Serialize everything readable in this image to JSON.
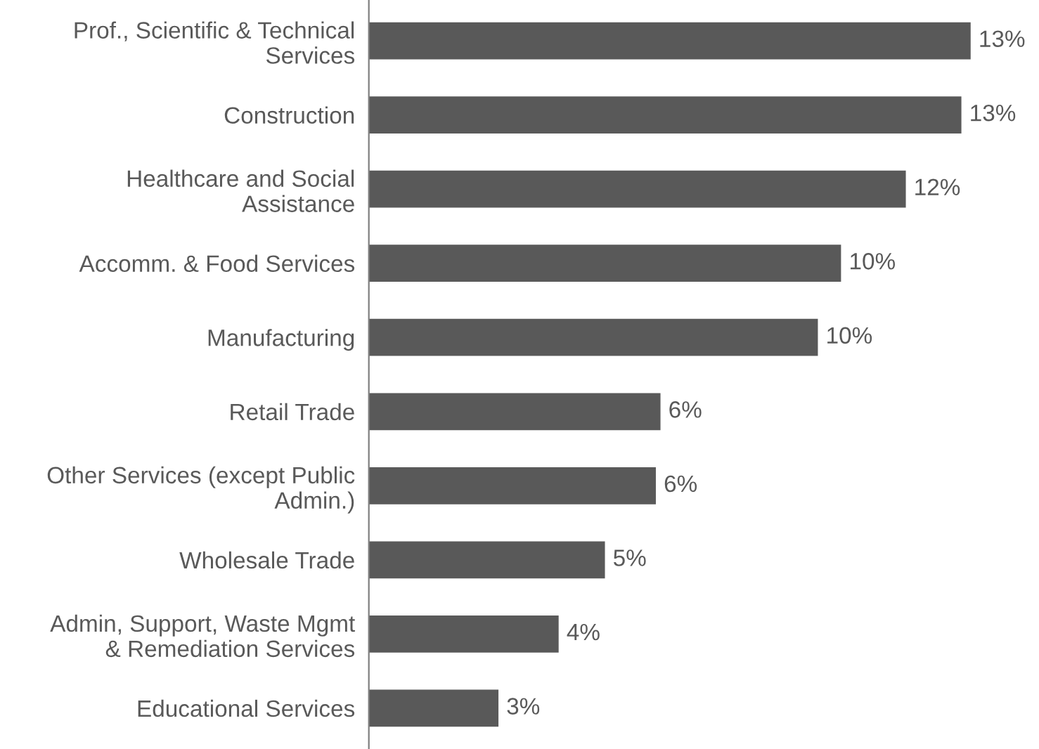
{
  "chart_data": {
    "type": "bar",
    "orientation": "horizontal",
    "categories": [
      "Prof., Scientific & Technical\nServices",
      "Construction",
      "Healthcare and Social\nAssistance",
      "Accomm. & Food Services",
      "Manufacturing",
      "Retail Trade",
      "Other Services (except Public\nAdmin.)",
      "Wholesale Trade",
      "Admin, Support, Waste Mgmt\n& Remediation Services",
      "Educational Services"
    ],
    "values": [
      13.0,
      12.8,
      11.6,
      10.2,
      9.7,
      6.3,
      6.2,
      5.1,
      4.1,
      2.8
    ],
    "value_labels": [
      "13%",
      "13%",
      "12%",
      "10%",
      "10%",
      "6%",
      "6%",
      "5%",
      "4%",
      "3%"
    ],
    "color": "#595959",
    "grid": false,
    "legend": false,
    "tick_labels": "y"
  }
}
